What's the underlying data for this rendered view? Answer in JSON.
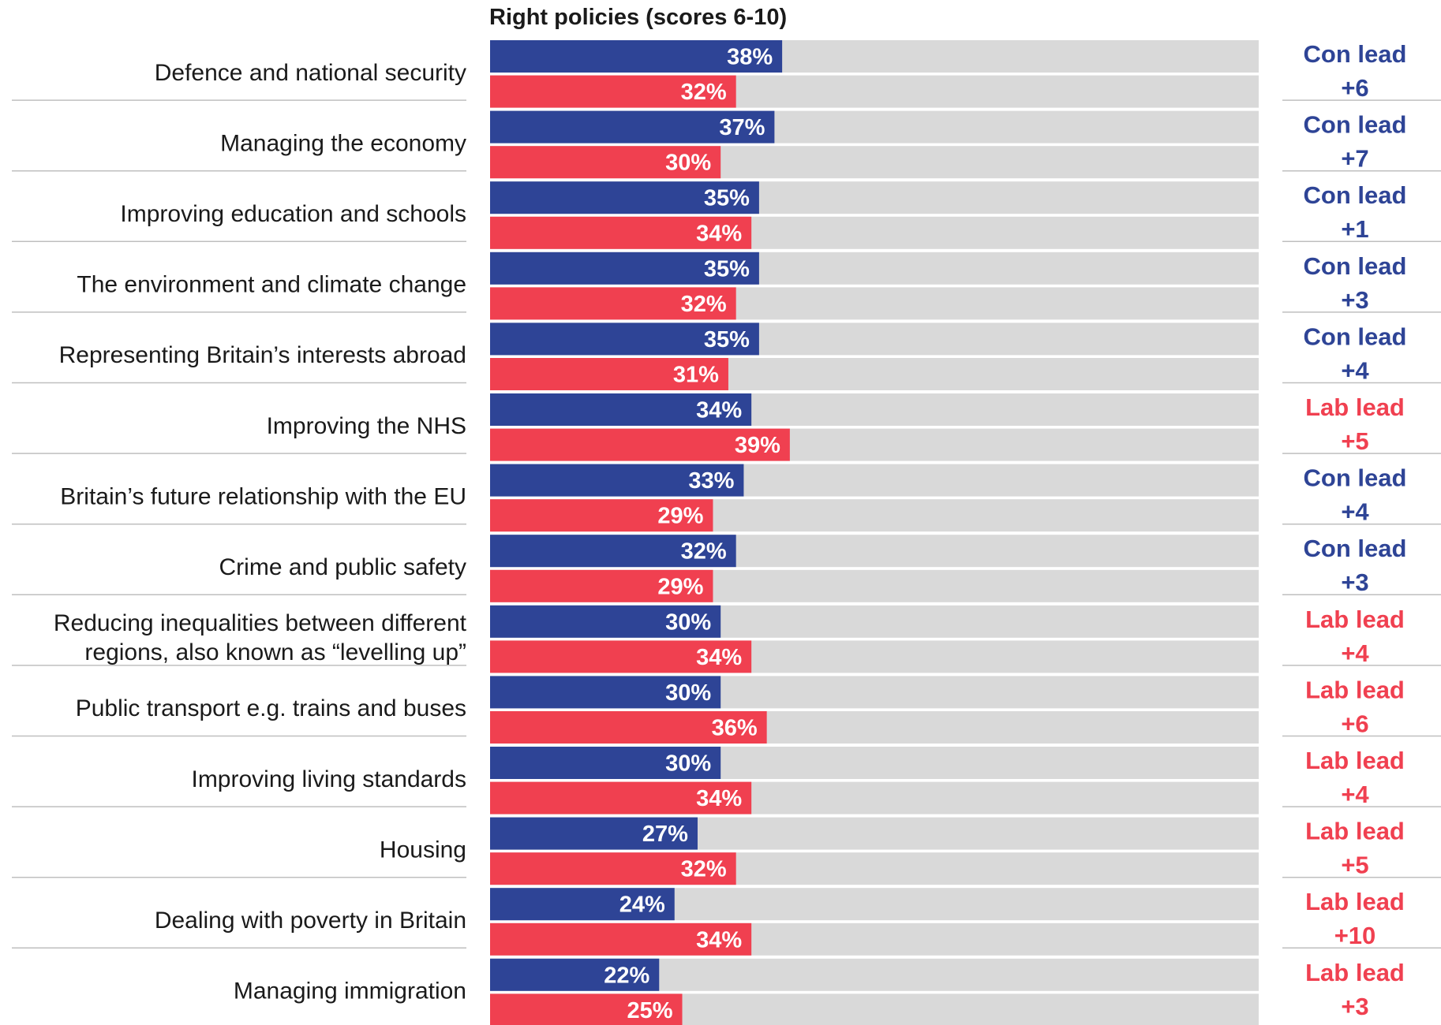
{
  "chart_data": {
    "type": "bar",
    "orientation": "horizontal",
    "title": "Right policies (scores 6-10)",
    "xlim": [
      0,
      100
    ],
    "value_suffix": "%",
    "categories": [
      "Defence and national security",
      "Managing the economy",
      "Improving education and schools",
      "The environment and climate change",
      "Representing Britain’s interests abroad",
      "Improving the NHS",
      "Britain’s future relationship with the EU",
      "Crime and public safety",
      "Reducing inequalities between different regions, also known as “levelling up”",
      "Public transport e.g. trains and buses",
      "Improving living standards",
      "Housing",
      "Dealing with poverty in Britain",
      "Managing immigration"
    ],
    "category_lines": [
      [
        "Defence and national security"
      ],
      [
        "Managing the economy"
      ],
      [
        "Improving education and schools"
      ],
      [
        "The environment and climate change"
      ],
      [
        "Representing Britain’s interests abroad"
      ],
      [
        "Improving the NHS"
      ],
      [
        "Britain’s future relationship with the EU"
      ],
      [
        "Crime and public safety"
      ],
      [
        "Reducing inequalities between different",
        "regions, also known as “levelling up”"
      ],
      [
        "Public transport e.g. trains and buses"
      ],
      [
        "Improving living standards"
      ],
      [
        "Housing"
      ],
      [
        "Dealing with poverty in Britain"
      ],
      [
        "Managing immigration"
      ]
    ],
    "series": [
      {
        "values": [
          38,
          37,
          35,
          35,
          35,
          34,
          33,
          32,
          30,
          30,
          30,
          27,
          24,
          22
        ],
        "color": "#2e4496"
      },
      {
        "values": [
          32,
          30,
          34,
          32,
          31,
          39,
          29,
          29,
          34,
          36,
          34,
          32,
          34,
          25
        ],
        "color": "#f04050"
      }
    ],
    "background_bar_color": "#d9d9d9",
    "leads": [
      {
        "party": "Con lead",
        "value": "+6"
      },
      {
        "party": "Con lead",
        "value": "+7"
      },
      {
        "party": "Con lead",
        "value": "+1"
      },
      {
        "party": "Con lead",
        "value": "+3"
      },
      {
        "party": "Con lead",
        "value": "+4"
      },
      {
        "party": "Lab lead",
        "value": "+5"
      },
      {
        "party": "Con lead",
        "value": "+4"
      },
      {
        "party": "Con lead",
        "value": "+3"
      },
      {
        "party": "Lab lead",
        "value": "+4"
      },
      {
        "party": "Lab lead",
        "value": "+6"
      },
      {
        "party": "Lab lead",
        "value": "+4"
      },
      {
        "party": "Lab lead",
        "value": "+5"
      },
      {
        "party": "Lab lead",
        "value": "+10"
      },
      {
        "party": "Lab lead",
        "value": "+3"
      }
    ],
    "lead_colors": {
      "Con lead": "#2e4496",
      "Lab lead": "#f04050"
    },
    "grid": false,
    "legend": "none"
  }
}
